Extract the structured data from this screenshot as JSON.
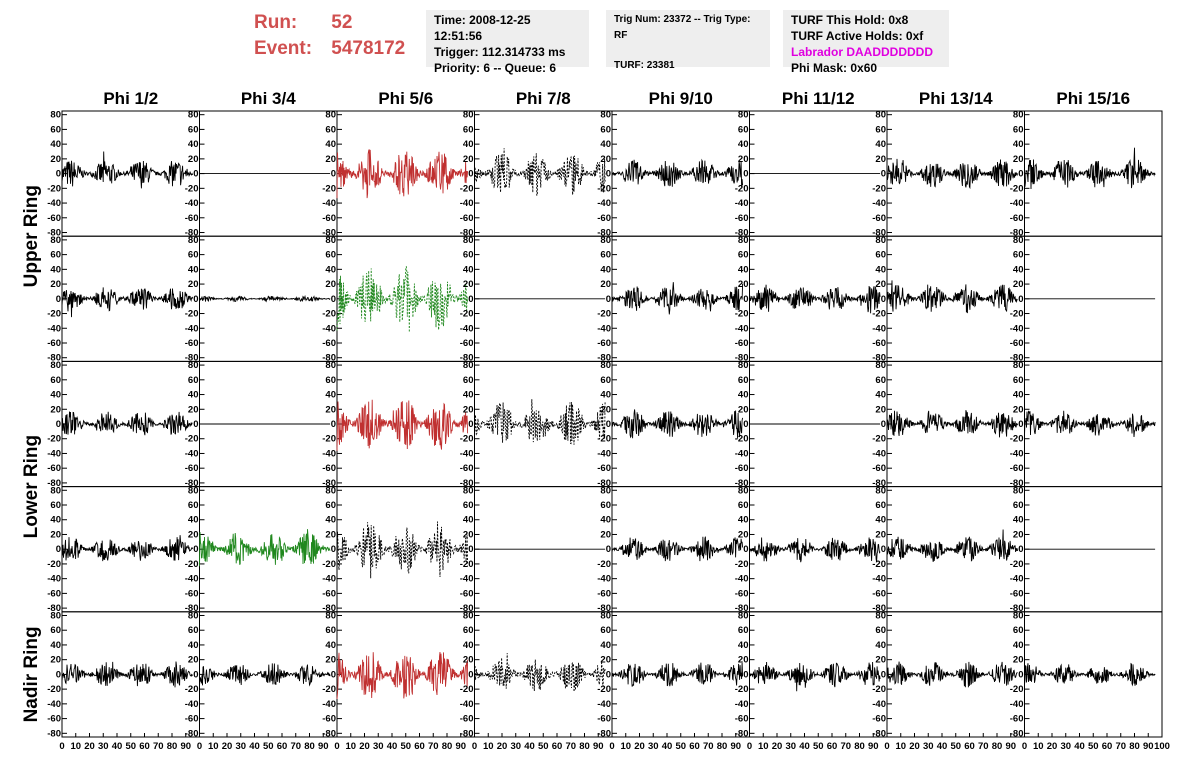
{
  "header": {
    "run_label": "Run:",
    "run_value": "52",
    "event_label": "Event:",
    "event_value": "5478172",
    "run_color": "#d05050"
  },
  "info_time": {
    "time": "Time: 2008-12-25 12:51:56",
    "trigger": "Trigger: 112.314733 ms",
    "priority": "Priority: 6 -- Queue: 6"
  },
  "info_trig": {
    "trig": "Trig Num: 23372 -- Trig Type: RF",
    "turf": "TURF: 23381"
  },
  "info_turf": {
    "hold": "TURF This Hold: 0x8",
    "active": "TURF Active Holds: 0xf",
    "labrador": "Labrador DAADDDDDDD",
    "phimask": "Phi Mask: 0x60"
  },
  "columns": [
    "Phi 1/2",
    "Phi 3/4",
    "Phi 5/6",
    "Phi 7/8",
    "Phi 9/10",
    "Phi 11/12",
    "Phi 13/14",
    "Phi 15/16"
  ],
  "ring_labels": [
    "Upper Ring",
    "Lower Ring",
    "Nadir Ring"
  ],
  "chart_data": {
    "type": "line",
    "x_range": [
      0,
      100
    ],
    "y_range": [
      -85,
      85
    ],
    "y_ticks": [
      80,
      60,
      40,
      20,
      0,
      -20,
      -40,
      -60,
      -80
    ],
    "x_tick_labels": [
      "0",
      "10",
      "20",
      "30",
      "40",
      "50",
      "60",
      "70",
      "80",
      "90",
      "100"
    ],
    "grid": false,
    "colors": {
      "black": "#000000",
      "red": "#c03030",
      "green": "#20881e"
    },
    "panels": [
      [
        "black",
        "flat",
        "red",
        "black-dash",
        "black",
        "flat",
        "black",
        "black"
      ],
      [
        "black",
        "black-small",
        "green-dash",
        "flat",
        "black",
        "black",
        "black",
        "flat"
      ],
      [
        "black",
        "flat",
        "red",
        "black-dash",
        "black",
        "flat",
        "black",
        "black"
      ],
      [
        "black",
        "green",
        "black-dash",
        "flat",
        "black",
        "black",
        "black",
        "flat"
      ],
      [
        "black",
        "black",
        "red",
        "black-dash",
        "black",
        "black",
        "black",
        "black"
      ]
    ],
    "amplitudes": [
      [
        20,
        0,
        35,
        30,
        20,
        0,
        20,
        22
      ],
      [
        18,
        4,
        45,
        0,
        18,
        20,
        20,
        0
      ],
      [
        18,
        0,
        38,
        32,
        20,
        0,
        20,
        18
      ],
      [
        18,
        25,
        40,
        0,
        18,
        18,
        18,
        0
      ],
      [
        18,
        16,
        35,
        25,
        18,
        18,
        18,
        16
      ]
    ]
  }
}
